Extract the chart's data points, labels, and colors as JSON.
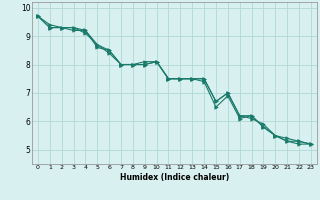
{
  "xlabel": "Humidex (Indice chaleur)",
  "ylabel": "",
  "x_values": [
    0,
    1,
    2,
    3,
    4,
    5,
    6,
    7,
    8,
    9,
    10,
    11,
    12,
    13,
    14,
    15,
    16,
    17,
    18,
    19,
    20,
    21,
    22,
    23
  ],
  "line1": [
    9.7,
    9.3,
    9.3,
    9.2,
    9.2,
    8.6,
    8.5,
    8.0,
    8.0,
    8.0,
    8.1,
    7.5,
    7.5,
    7.5,
    7.4,
    6.5,
    6.9,
    6.1,
    6.2,
    5.8,
    5.5,
    5.3,
    5.2,
    5.2
  ],
  "line2": [
    9.7,
    9.3,
    9.3,
    9.3,
    9.2,
    8.7,
    8.5,
    8.0,
    8.0,
    8.1,
    8.1,
    7.5,
    7.5,
    7.5,
    7.5,
    6.7,
    7.0,
    6.2,
    6.1,
    5.9,
    5.5,
    5.3,
    5.3,
    5.2
  ],
  "line3": [
    9.7,
    9.4,
    9.3,
    9.3,
    9.1,
    8.7,
    8.4,
    8.0,
    8.0,
    8.0,
    8.1,
    7.5,
    7.5,
    7.5,
    7.5,
    6.7,
    7.0,
    6.2,
    6.2,
    5.8,
    5.5,
    5.4,
    5.3,
    5.2
  ],
  "line_color": "#1a7a6a",
  "bg_color": "#d8f0f0",
  "grid_color": "#b0d8d8",
  "ylim": [
    4.5,
    10.2
  ],
  "xlim": [
    -0.5,
    23.5
  ],
  "yticks": [
    5,
    6,
    7,
    8,
    9,
    10
  ],
  "xticks": [
    0,
    1,
    2,
    3,
    4,
    5,
    6,
    7,
    8,
    9,
    10,
    11,
    12,
    13,
    14,
    15,
    16,
    17,
    18,
    19,
    20,
    21,
    22,
    23
  ]
}
